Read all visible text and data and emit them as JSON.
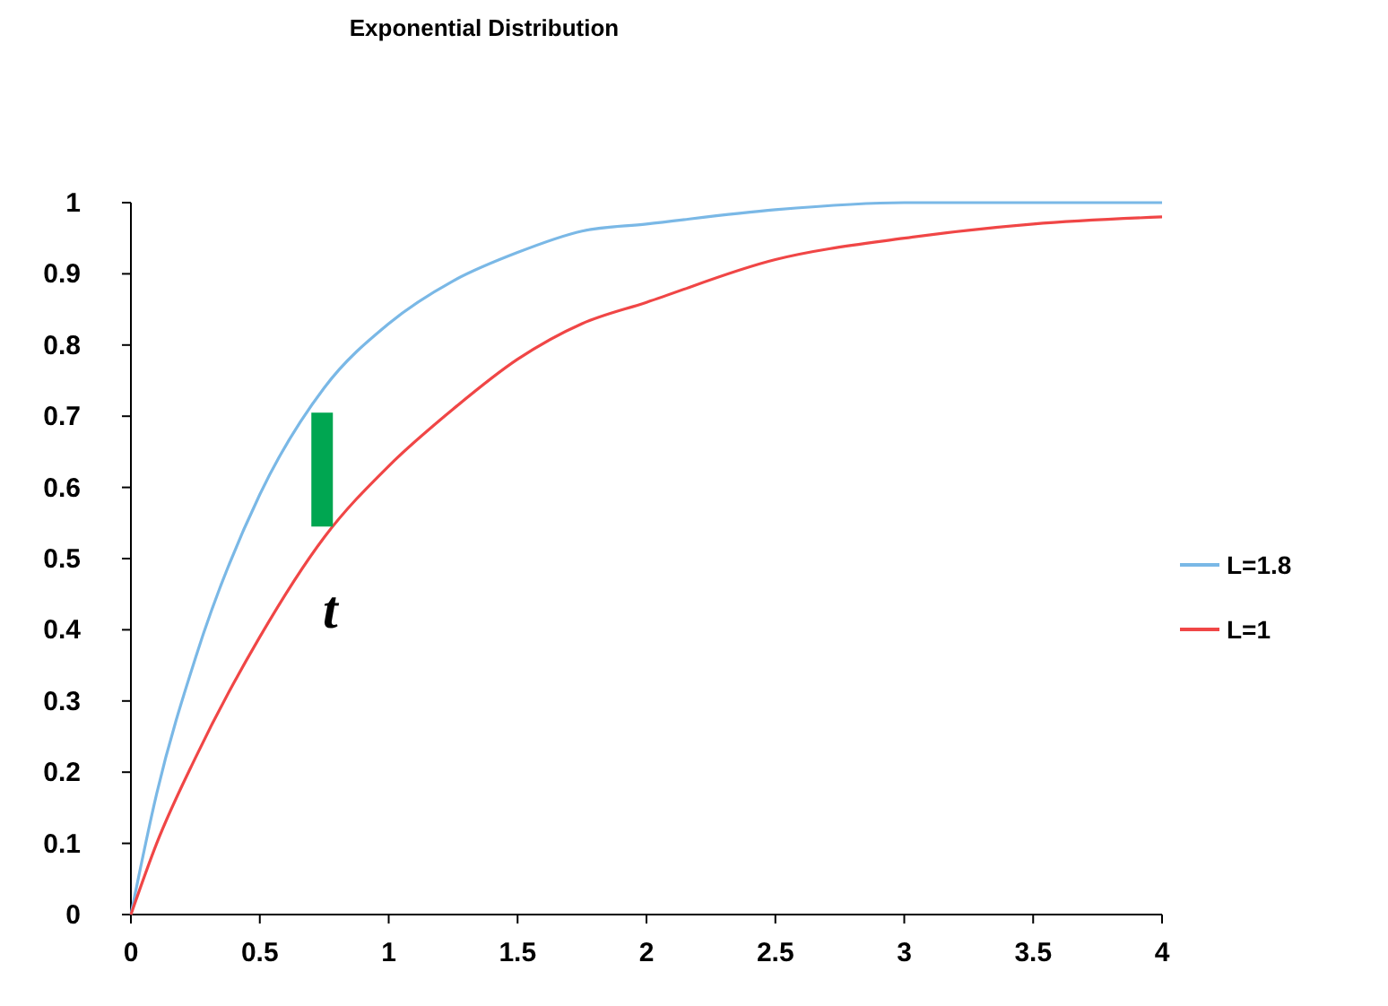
{
  "chart_data": {
    "type": "line",
    "title": "Exponential Distribution",
    "x": [
      0,
      0.1,
      0.25,
      0.5,
      0.75,
      1,
      1.25,
      1.5,
      1.75,
      2,
      2.5,
      3,
      3.5,
      4
    ],
    "series": [
      {
        "name": "L=1.8",
        "color": "#7ab8e6",
        "values": [
          0,
          0.17,
          0.36,
          0.59,
          0.74,
          0.83,
          0.89,
          0.93,
          0.96,
          0.97,
          0.99,
          1.0,
          1.0,
          1.0
        ]
      },
      {
        "name": "L=1",
        "color": "#f04646",
        "values": [
          0,
          0.1,
          0.22,
          0.39,
          0.53,
          0.63,
          0.71,
          0.78,
          0.83,
          0.86,
          0.92,
          0.95,
          0.97,
          0.98
        ]
      }
    ],
    "xlim": [
      0,
      4
    ],
    "xticks": [
      0,
      0.5,
      1,
      1.5,
      2,
      2.5,
      3,
      3.5,
      4
    ],
    "ylim": [
      0,
      1
    ],
    "yticks": [
      0,
      0.1,
      0.2,
      0.3,
      0.4,
      0.5,
      0.6,
      0.7,
      0.8,
      0.9,
      1
    ],
    "annotations": [
      "t"
    ],
    "grid": false,
    "legend": "right",
    "marker": "none",
    "line_style": "solid"
  }
}
